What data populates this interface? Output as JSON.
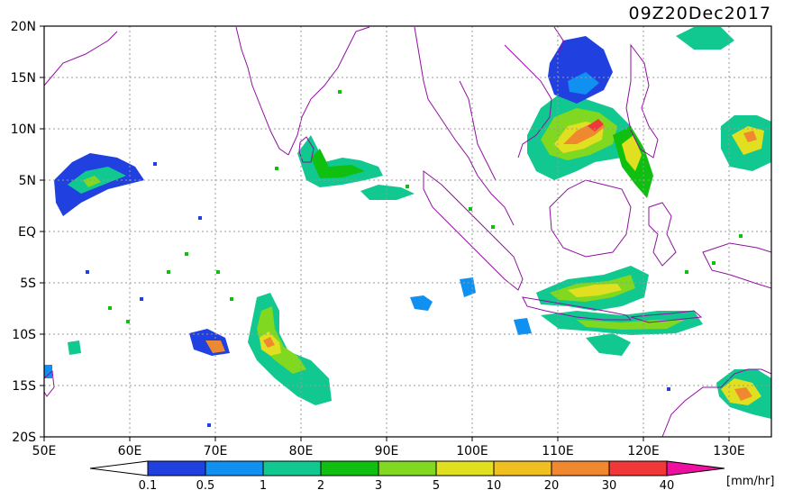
{
  "title": "09Z20Dec2017",
  "lat_labels": [
    "20N",
    "15N",
    "10N",
    "5N",
    "EQ",
    "5S",
    "10S",
    "15S",
    "20S"
  ],
  "lon_labels": [
    "50E",
    "60E",
    "70E",
    "80E",
    "90E",
    "100E",
    "110E",
    "120E",
    "130E"
  ],
  "colorbar": {
    "ticks": [
      "0.1",
      "0.5",
      "1",
      "2",
      "3",
      "5",
      "10",
      "20",
      "30",
      "40"
    ],
    "unit": "[mm/hr]",
    "colors": [
      "#2040e0",
      "#1090f0",
      "#10c890",
      "#10c010",
      "#80d820",
      "#e0e020",
      "#f0c020",
      "#f08830",
      "#f03838",
      "#f010a0"
    ]
  },
  "map": {
    "coastline_color": "#9010a0",
    "grid_color": "#9a9a9a"
  }
}
